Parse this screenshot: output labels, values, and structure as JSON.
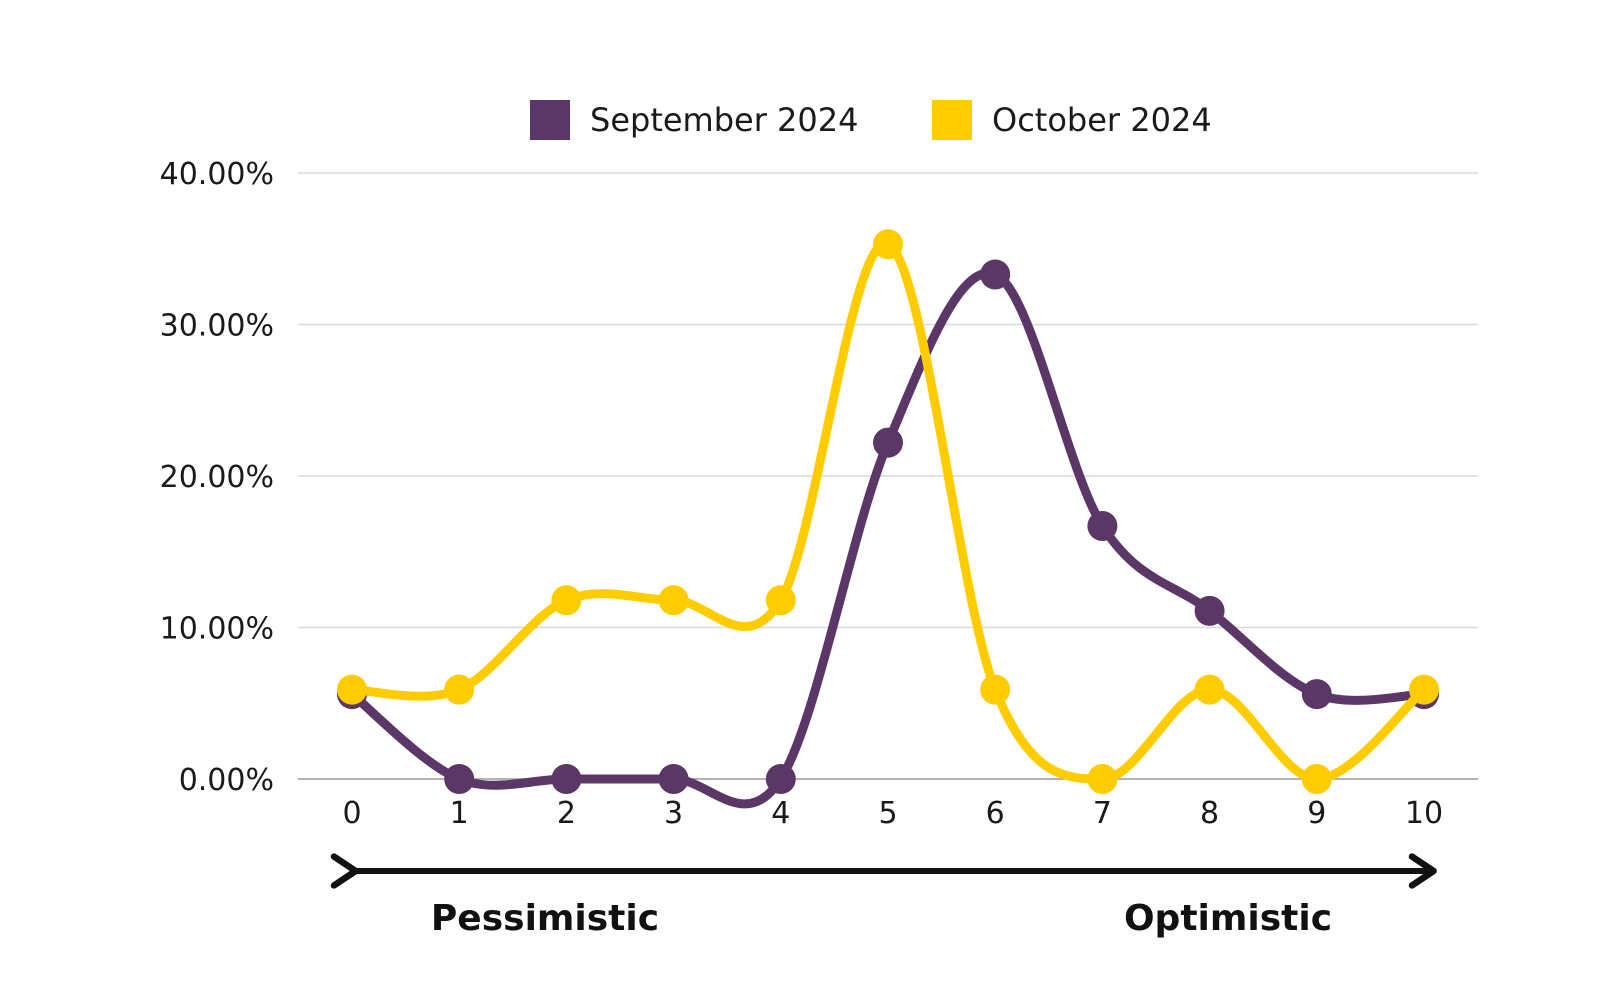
{
  "chart_data": {
    "type": "line",
    "x": [
      0,
      1,
      2,
      3,
      4,
      5,
      6,
      7,
      8,
      9,
      10
    ],
    "series": [
      {
        "name": "September 2024",
        "color": "#5b3768",
        "values": [
          5.6,
          0,
          0,
          0,
          0,
          22.2,
          33.3,
          16.7,
          11.1,
          5.6,
          5.6
        ]
      },
      {
        "name": "October 2024",
        "color": "#ffcc00",
        "values": [
          5.9,
          5.9,
          11.8,
          11.8,
          11.8,
          35.3,
          5.9,
          0,
          5.9,
          0,
          5.9
        ]
      }
    ],
    "ylim": [
      0,
      40
    ],
    "yticks": [
      0,
      10,
      20,
      30,
      40
    ],
    "ytick_labels": [
      "0.00%",
      "10.00%",
      "20.00%",
      "30.00%",
      "40.00%"
    ],
    "xtick_labels": [
      "0",
      "1",
      "2",
      "3",
      "4",
      "5",
      "6",
      "7",
      "8",
      "9",
      "10"
    ],
    "grid": true,
    "legend_position": "top-center",
    "scale_arrow": {
      "left_label": "Pessimistic",
      "right_label": "Optimistic"
    }
  }
}
